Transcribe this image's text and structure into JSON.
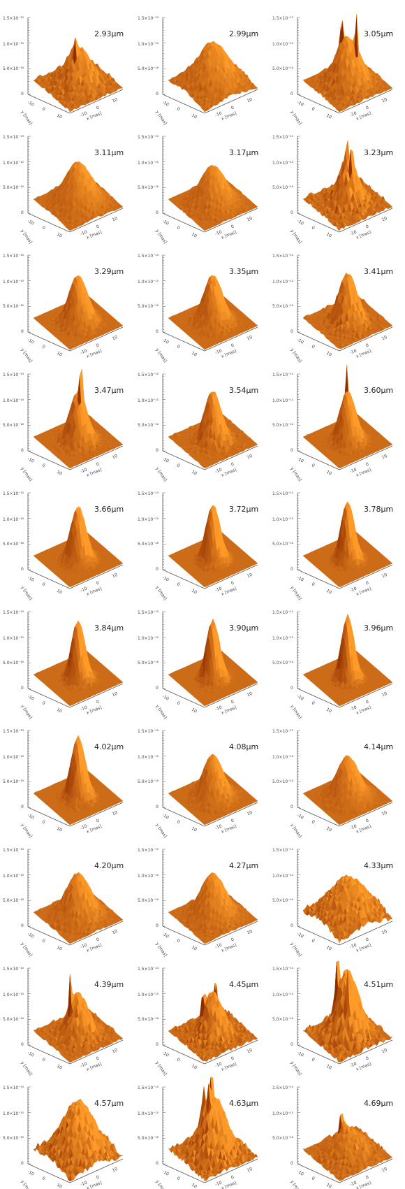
{
  "chart_data": {
    "type": "surface-grid",
    "z_ticks": [
      "0",
      "5.0×10⁻¹⁶",
      "1.0×10⁻¹⁵",
      "1.5×10⁻¹⁵"
    ],
    "axis_labels": {
      "x": "x [mas]",
      "y": "y [mas]"
    },
    "x_ticks": [
      "-10",
      "0",
      "10"
    ],
    "y_ticks": [
      "-10",
      "0",
      "10"
    ],
    "panels": [
      {
        "label": "2.93μm",
        "peak": 0.55,
        "width": 0.55,
        "noise": 0.35,
        "spikes": 1
      },
      {
        "label": "2.99μm",
        "peak": 0.6,
        "width": 0.7,
        "noise": 0.2,
        "spikes": 0
      },
      {
        "label": "3.05μm",
        "peak": 0.68,
        "width": 0.55,
        "noise": 0.25,
        "spikes": 2
      },
      {
        "label": "3.11μm",
        "peak": 0.6,
        "width": 0.6,
        "noise": 0.15,
        "spikes": 0
      },
      {
        "label": "3.17μm",
        "peak": 0.55,
        "width": 0.55,
        "noise": 0.15,
        "spikes": 0
      },
      {
        "label": "3.23μm",
        "peak": 0.62,
        "width": 0.45,
        "noise": 0.45,
        "spikes": 2
      },
      {
        "label": "3.29μm",
        "peak": 0.68,
        "width": 0.42,
        "noise": 0.15,
        "spikes": 0
      },
      {
        "label": "3.35μm",
        "peak": 0.68,
        "width": 0.42,
        "noise": 0.15,
        "spikes": 0
      },
      {
        "label": "3.41μm",
        "peak": 0.7,
        "width": 0.42,
        "noise": 0.3,
        "spikes": 0
      },
      {
        "label": "3.47μm",
        "peak": 0.72,
        "width": 0.38,
        "noise": 0.2,
        "spikes": 1
      },
      {
        "label": "3.54μm",
        "peak": 0.72,
        "width": 0.38,
        "noise": 0.25,
        "spikes": 0
      },
      {
        "label": "3.60μm",
        "peak": 0.72,
        "width": 0.36,
        "noise": 0.15,
        "spikes": 1
      },
      {
        "label": "3.66μm",
        "peak": 0.78,
        "width": 0.34,
        "noise": 0.12,
        "spikes": 0
      },
      {
        "label": "3.72μm",
        "peak": 0.8,
        "width": 0.32,
        "noise": 0.12,
        "spikes": 0
      },
      {
        "label": "3.78μm",
        "peak": 0.85,
        "width": 0.3,
        "noise": 0.12,
        "spikes": 0
      },
      {
        "label": "3.84μm",
        "peak": 0.85,
        "width": 0.3,
        "noise": 0.15,
        "spikes": 0
      },
      {
        "label": "3.90μm",
        "peak": 0.85,
        "width": 0.3,
        "noise": 0.15,
        "spikes": 0
      },
      {
        "label": "3.96μm",
        "peak": 0.92,
        "width": 0.28,
        "noise": 0.15,
        "spikes": 0
      },
      {
        "label": "4.02μm",
        "peak": 0.88,
        "width": 0.32,
        "noise": 0.18,
        "spikes": 0
      },
      {
        "label": "4.08μm",
        "peak": 0.62,
        "width": 0.45,
        "noise": 0.15,
        "spikes": 0
      },
      {
        "label": "4.14μm",
        "peak": 0.6,
        "width": 0.5,
        "noise": 0.12,
        "spikes": 0
      },
      {
        "label": "4.20μm",
        "peak": 0.62,
        "width": 0.55,
        "noise": 0.18,
        "spikes": 0
      },
      {
        "label": "4.27μm",
        "peak": 0.62,
        "width": 0.55,
        "noise": 0.18,
        "spikes": 0
      },
      {
        "label": "4.33μm",
        "peak": 0.55,
        "width": 0.8,
        "noise": 0.4,
        "spikes": 0
      },
      {
        "label": "4.39μm",
        "peak": 0.6,
        "width": 0.45,
        "noise": 0.35,
        "spikes": 1
      },
      {
        "label": "4.45μm",
        "peak": 0.6,
        "width": 0.45,
        "noise": 0.45,
        "spikes": 2
      },
      {
        "label": "4.51μm",
        "peak": 0.9,
        "width": 0.5,
        "noise": 0.5,
        "spikes": 3
      },
      {
        "label": "4.57μm",
        "peak": 0.75,
        "width": 0.7,
        "noise": 0.45,
        "spikes": 0
      },
      {
        "label": "4.63μm",
        "peak": 0.85,
        "width": 0.55,
        "noise": 0.5,
        "spikes": 3
      },
      {
        "label": "4.69μm",
        "peak": 0.4,
        "width": 0.6,
        "noise": 0.3,
        "spikes": 1
      }
    ],
    "colors": {
      "surface_light": "#ff9a2e",
      "surface_mid": "#e8650d",
      "surface_dark": "#8a2a00",
      "axis": "#555555"
    }
  }
}
